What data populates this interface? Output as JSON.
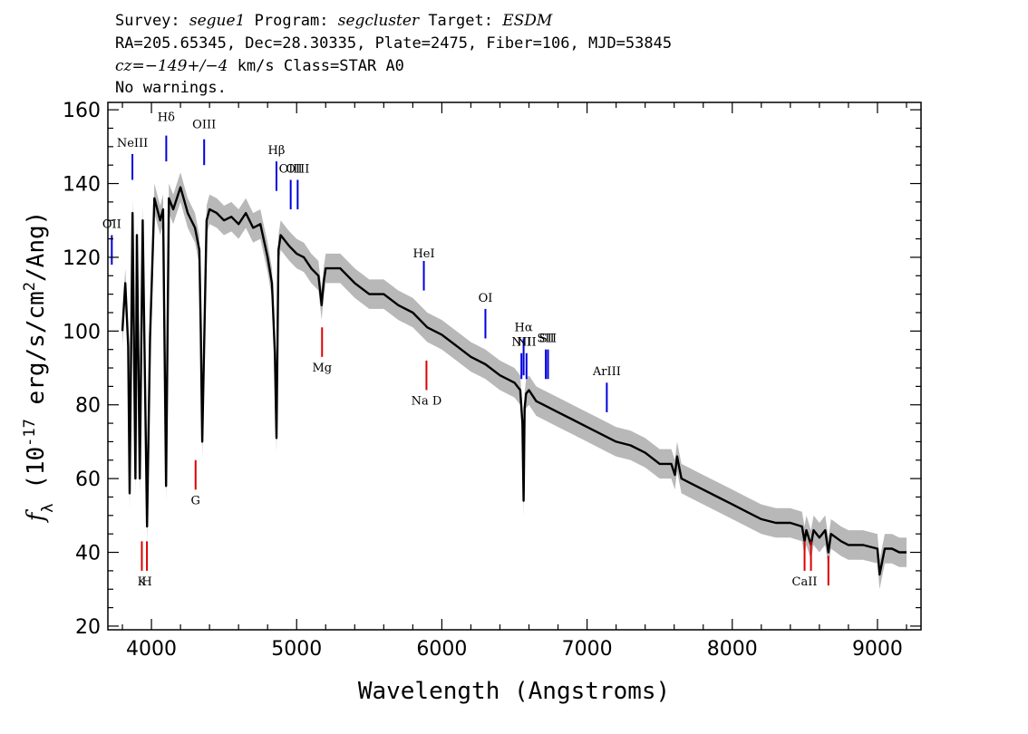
{
  "header": {
    "line1": {
      "survey_label": "Survey: ",
      "survey": "segue1",
      "program_label": " Program: ",
      "program": "segcluster",
      "target_label": " Target: ",
      "target": "ESDM"
    },
    "line2": "RA=205.65345, Dec=28.30335, Plate=2475, Fiber=106, MJD=53845",
    "line3": {
      "cz_label": "cz",
      "cz_value": "=−149+/−4",
      "cz_rest": " km/s Class=STAR A0"
    },
    "line4": "No warnings."
  },
  "colors": {
    "spectrum": "#000000",
    "error_band": "#b8b8b8",
    "emission_line": "#0000dd",
    "absorption_line": "#dd0000",
    "axes": "#000000"
  },
  "chart_data": {
    "type": "line",
    "title": "",
    "xlabel": "Wavelength (Angstroms)",
    "ylabel": "f_λ (10^-17 erg/s/cm^2/Ang)",
    "xlim": [
      3700,
      9300
    ],
    "ylim": [
      19,
      162
    ],
    "xticks": [
      4000,
      5000,
      6000,
      7000,
      8000,
      9000
    ],
    "yticks": [
      20,
      40,
      60,
      80,
      100,
      120,
      140,
      160
    ],
    "grid": false,
    "series": [
      {
        "x": [
          3800,
          3820,
          3840,
          3850,
          3870,
          3890,
          3900,
          3920,
          3940,
          3970,
          3990,
          4020,
          4060,
          4080,
          4101,
          4120,
          4150,
          4200,
          4250,
          4300,
          4330,
          4340,
          4350,
          4380,
          4400,
          4450,
          4500,
          4550,
          4600,
          4650,
          4700,
          4750,
          4800,
          4830,
          4850,
          4861,
          4875,
          4890,
          4950,
          5000,
          5050,
          5100,
          5150,
          5172,
          5185,
          5200,
          5300,
          5400,
          5500,
          5600,
          5700,
          5800,
          5900,
          6000,
          6100,
          6200,
          6300,
          6400,
          6500,
          6540,
          6555,
          6563,
          6570,
          6580,
          6600,
          6650,
          6700,
          6800,
          6900,
          7000,
          7100,
          7200,
          7300,
          7400,
          7500,
          7580,
          7605,
          7620,
          7650,
          7700,
          7800,
          7900,
          8000,
          8100,
          8200,
          8300,
          8400,
          8480,
          8498,
          8510,
          8542,
          8560,
          8600,
          8640,
          8662,
          8680,
          8750,
          8800,
          8900,
          9000,
          9015,
          9050,
          9100,
          9150,
          9200
        ],
        "y": [
          100,
          113,
          96,
          56,
          132,
          60,
          126,
          60,
          130,
          47,
          98,
          136,
          130,
          133,
          58,
          136,
          133,
          139,
          132,
          128,
          122,
          100,
          70,
          130,
          133,
          132,
          130,
          131,
          129,
          132,
          128,
          129,
          120,
          113,
          94,
          71,
          122,
          126,
          123,
          121,
          120,
          117,
          115,
          107,
          113,
          117,
          117,
          113,
          110,
          110,
          107,
          105,
          101,
          99,
          96,
          93,
          91,
          88,
          86,
          84,
          75,
          54,
          79,
          83,
          84,
          81,
          80,
          78,
          76,
          74,
          72,
          70,
          69,
          67,
          64,
          64,
          61,
          66,
          60,
          59,
          57,
          55,
          53,
          51,
          49,
          48,
          48,
          47,
          43,
          46,
          42,
          46,
          44,
          46,
          40,
          45,
          43,
          42,
          42,
          41,
          34,
          41,
          41,
          40,
          40
        ]
      }
    ],
    "error_band": {
      "width": 4
    },
    "line_markers": [
      {
        "label": "NeIII",
        "wavelength": 3869,
        "kind": "emission",
        "y0": 141,
        "y1": 148,
        "label_y": 150
      },
      {
        "label": "Hδ",
        "wavelength": 4102,
        "kind": "emission",
        "y0": 146,
        "y1": 153,
        "label_y": 157
      },
      {
        "label": "OIII",
        "wavelength": 4363,
        "kind": "emission",
        "y0": 145,
        "y1": 152,
        "label_y": 155
      },
      {
        "label": "Hβ",
        "wavelength": 4861,
        "kind": "emission",
        "y0": 138,
        "y1": 146,
        "label_y": 148
      },
      {
        "label": "OIII",
        "wavelength": 4959,
        "kind": "emission",
        "y0": 133,
        "y1": 141,
        "label_y": 143
      },
      {
        "label": "OIII",
        "wavelength": 5007,
        "kind": "emission",
        "y0": 133,
        "y1": 141,
        "label_y": 143
      },
      {
        "label": "OII",
        "wavelength": 3727,
        "kind": "emission",
        "y0": 118,
        "y1": 126,
        "label_y": 128
      },
      {
        "label": "HeI",
        "wavelength": 5876,
        "kind": "emission",
        "y0": 111,
        "y1": 119,
        "label_y": 120
      },
      {
        "label": "OI",
        "wavelength": 6300,
        "kind": "emission",
        "y0": 98,
        "y1": 106,
        "label_y": 108
      },
      {
        "label": "NII",
        "wavelength": 6548,
        "kind": "emission",
        "y0": 87,
        "y1": 94,
        "label_y": 96
      },
      {
        "label": "Hα",
        "wavelength": 6563,
        "kind": "emission",
        "y0": 88,
        "y1": 98,
        "label_y": 100
      },
      {
        "label": "NII",
        "wavelength": 6583,
        "kind": "emission",
        "y0": 87,
        "y1": 94,
        "label_y": 96
      },
      {
        "label": "SII",
        "wavelength": 6716,
        "kind": "emission",
        "y0": 87,
        "y1": 95,
        "label_y": 97
      },
      {
        "label": "SII",
        "wavelength": 6731,
        "kind": "emission",
        "y0": 87,
        "y1": 95,
        "label_y": 97
      },
      {
        "label": "ArIII",
        "wavelength": 7136,
        "kind": "emission",
        "y0": 78,
        "y1": 86,
        "label_y": 88
      },
      {
        "label": "K",
        "wavelength": 3934,
        "kind": "absorption",
        "y0": 35,
        "y1": 43,
        "label_y": 31
      },
      {
        "label": "H",
        "wavelength": 3969,
        "kind": "absorption",
        "y0": 35,
        "y1": 43,
        "label_y": 31
      },
      {
        "label": "G",
        "wavelength": 4304,
        "kind": "absorption",
        "y0": 57,
        "y1": 65,
        "label_y": 53
      },
      {
        "label": "Mg",
        "wavelength": 5175,
        "kind": "absorption",
        "y0": 93,
        "y1": 101,
        "label_y": 89
      },
      {
        "label": "Na D",
        "wavelength": 5894,
        "kind": "absorption",
        "y0": 84,
        "y1": 92,
        "label_y": 80
      },
      {
        "label": "CaII",
        "wavelength": 8498,
        "kind": "absorption",
        "y0": 35,
        "y1": 43,
        "label_y": 31
      },
      {
        "label": "CaII",
        "wavelength": 8542,
        "kind": "absorption",
        "y0": 35,
        "y1": 43
      },
      {
        "label": "CaII",
        "wavelength": 8662,
        "kind": "absorption",
        "y0": 31,
        "y1": 39
      }
    ]
  }
}
